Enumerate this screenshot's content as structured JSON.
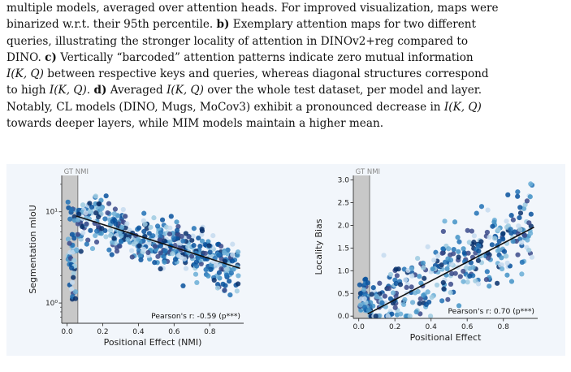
{
  "caption": {
    "lines": [
      [
        {
          "t": "multiple models, averaged over attention heads. For improved visualization, maps were"
        }
      ],
      [
        {
          "t": "binarized w.r.t. their 95th percentile. "
        },
        {
          "t": "b)",
          "b": true
        },
        {
          "t": " Exemplary attention maps for two different"
        }
      ],
      [
        {
          "t": "queries, illustrating the stronger locality of attention in DINOv2+reg compared to"
        }
      ],
      [
        {
          "t": "DINO. "
        },
        {
          "t": "c)",
          "b": true
        },
        {
          "t": " Vertically “barcoded” attention patterns indicate zero mutual information"
        }
      ],
      [
        {
          "t": "I(K, Q)",
          "i": true
        },
        {
          "t": " between respective keys and queries, whereas diagonal structures correspond"
        }
      ],
      [
        {
          "t": "to high "
        },
        {
          "t": "I(K, Q)",
          "i": true
        },
        {
          "t": ". "
        },
        {
          "t": "d)",
          "b": true
        },
        {
          "t": " Averaged "
        },
        {
          "t": "I(K, Q)",
          "i": true
        },
        {
          "t": " over the whole test dataset, per model and layer."
        }
      ],
      [
        {
          "t": "Notably, CL models (DINO, Mugs, MoCov3) exhibit a pronounced decrease in "
        },
        {
          "t": "I(K, Q)",
          "i": true
        }
      ],
      [
        {
          "t": "towards deeper layers, while MIM models maintain a higher mean."
        }
      ]
    ]
  },
  "colors": {
    "gt_band": "#c8c8c8",
    "gt_line": "#888888",
    "fit_line": "#111111",
    "palette": [
      "#c6dbef",
      "#9ecae1",
      "#6baed6",
      "#4292c6",
      "#2171b5",
      "#08519c",
      "#08306b",
      "#3b4a8a"
    ]
  },
  "chart_data": [
    {
      "type": "scatter",
      "band_label": "GT NMI",
      "xlabel": "Positional Effect (NMI)",
      "ylabel": "Segmentation mIoU",
      "xlim": [
        -0.03,
        0.99
      ],
      "ylim": [
        0.6,
        25
      ],
      "log_y": true,
      "x_ticks": [
        0.0,
        0.2,
        0.4,
        0.6,
        0.8
      ],
      "x_tick_labels": [
        "0.0",
        "0.2",
        "0.4",
        "0.6",
        "0.8"
      ],
      "y_ticks": [
        1,
        10
      ],
      "y_tick_labels": [
        "10⁰",
        "10¹"
      ],
      "gt_band": [
        -0.03,
        0.06
      ],
      "annotation": "Pearson's r: -0.59 (p***)",
      "fit": {
        "x": [
          0.05,
          0.97
        ],
        "y": [
          9.0,
          2.4
        ]
      },
      "n_points": 520,
      "seed": 11
    },
    {
      "type": "scatter",
      "band_label": "GT NMI",
      "xlabel": "Positional Effect",
      "ylabel": "Locality Bias",
      "xlim": [
        -0.03,
        0.99
      ],
      "ylim": [
        -0.05,
        3.1
      ],
      "log_y": false,
      "x_ticks": [
        0.0,
        0.2,
        0.4,
        0.6,
        0.8
      ],
      "x_tick_labels": [
        "0.0",
        "0.2",
        "0.4",
        "0.6",
        "0.8"
      ],
      "y_ticks": [
        0.0,
        0.5,
        1.0,
        1.5,
        2.0,
        2.5,
        3.0
      ],
      "y_tick_labels": [
        "0.0",
        "0.5",
        "1.0",
        "1.5",
        "2.0",
        "2.5",
        "3.0"
      ],
      "gt_band": [
        -0.03,
        0.06
      ],
      "annotation": "Pearson's r: 0.70 (p***)",
      "fit": {
        "x": [
          0.05,
          0.97
        ],
        "y": [
          0.05,
          1.96
        ]
      },
      "n_points": 420,
      "seed": 23
    }
  ]
}
